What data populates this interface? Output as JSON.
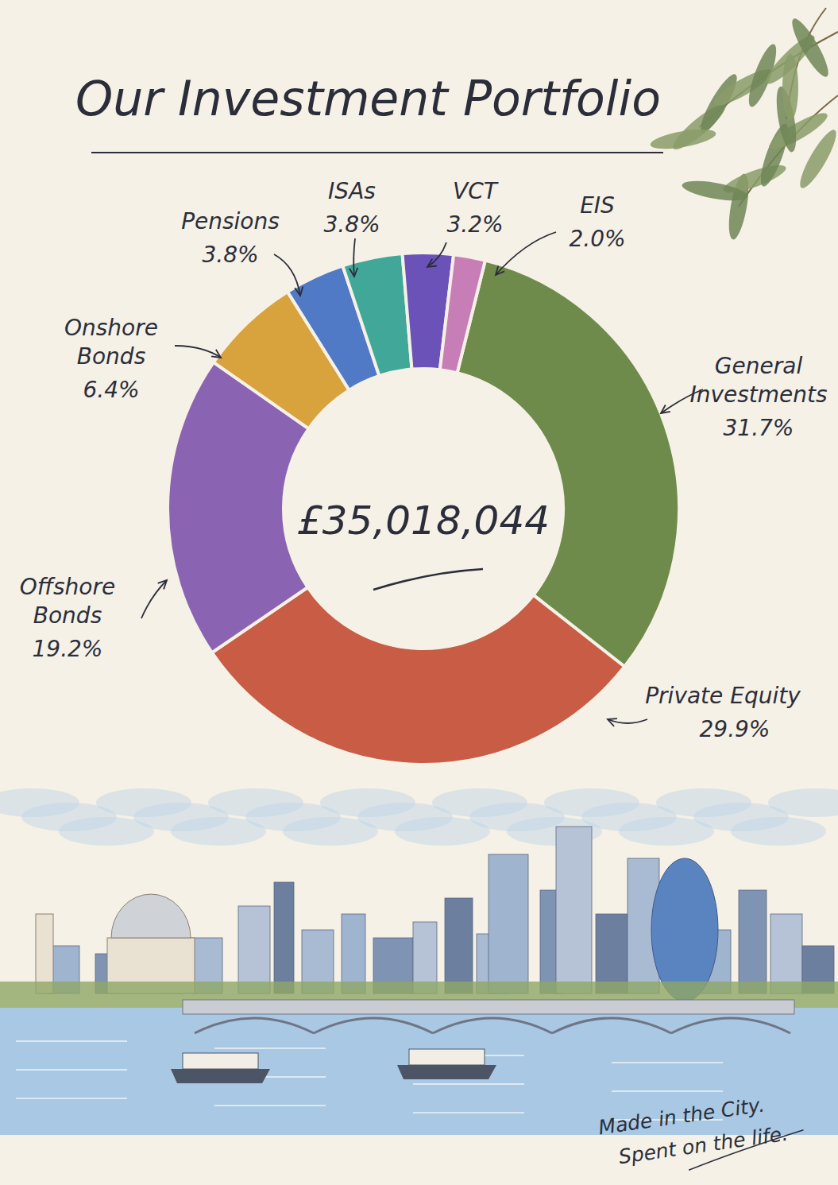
{
  "chart_data": {
    "type": "donut",
    "title": "Our Investment Portfolio",
    "categories": [
      "General Investments",
      "Private Equity",
      "Offshore Bonds",
      "Onshore Bonds",
      "Pensions",
      "ISAs",
      "VCT",
      "EIS"
    ],
    "values": [
      31.7,
      29.9,
      19.2,
      6.4,
      3.8,
      3.8,
      3.2,
      2.0
    ],
    "value_labels": [
      "31.7%",
      "29.9%",
      "19.2%",
      "6.4%",
      "3.8%",
      "3.8%",
      "3.2%",
      "2.0%"
    ],
    "colors": [
      "#6f8b4c",
      "#c85c45",
      "#8a64b2",
      "#d8a23c",
      "#5079c6",
      "#41a899",
      "#6a52b8",
      "#c77db6"
    ],
    "data_labels": true,
    "annotations": [
      "£35,018,044",
      "Made in the City.",
      "Spent on the life."
    ]
  }
}
